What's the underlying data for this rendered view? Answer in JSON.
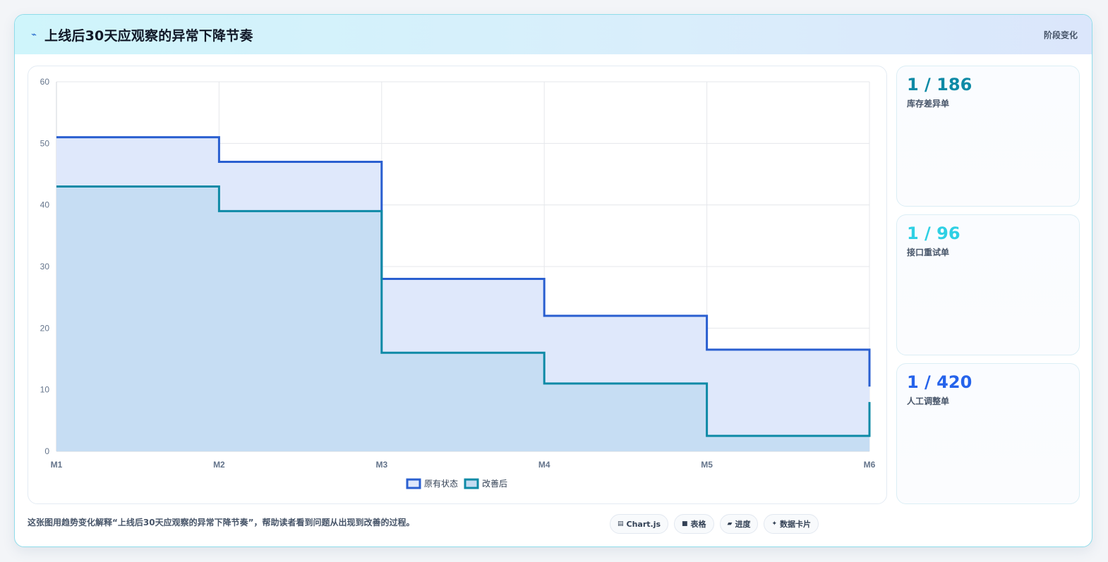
{
  "header": {
    "icon": "lightning-icon",
    "title": "上线后30天应观察的异常下降节奏",
    "tag": "阶段变化"
  },
  "colors": {
    "series_original": "#2a5fd0",
    "series_original_fill": "#dfe8fb",
    "series_improved": "#0e8aa6",
    "series_improved_fill": "#c4dcf2",
    "stat1": "#0e8aa6",
    "stat2": "#2ed0e4",
    "stat3": "#2563eb"
  },
  "chart_data": {
    "type": "line",
    "stepped": true,
    "categories": [
      "M1",
      "M2",
      "M3",
      "M4",
      "M5",
      "M6"
    ],
    "series": [
      {
        "name": "原有状态",
        "values": [
          51,
          47,
          28,
          22,
          16.5,
          10.5
        ]
      },
      {
        "name": "改善后",
        "values": [
          43,
          39,
          16,
          11,
          2.5,
          8
        ]
      }
    ],
    "yticks": [
      0,
      10,
      20,
      30,
      40,
      50,
      60
    ],
    "ylim": [
      0,
      60
    ],
    "grid": true,
    "legend": "bottom"
  },
  "stats": [
    {
      "value": "1 / 186",
      "label": "库存差异单"
    },
    {
      "value": "1 / 96",
      "label": "接口重试单"
    },
    {
      "value": "1 / 420",
      "label": "人工调整单"
    }
  ],
  "footer": {
    "text": "这张图用趋势变化解释“上线后30天应观察的异常下降节奏”，帮助读者看到问题从出现到改善的过程。",
    "chips": [
      {
        "icon": "chart-icon",
        "glyph": "▤",
        "label": "Chart.js"
      },
      {
        "icon": "table-icon",
        "glyph": "■",
        "label": "表格"
      },
      {
        "icon": "progress-icon",
        "glyph": "▰",
        "label": "进度"
      },
      {
        "icon": "sparkle-icon",
        "glyph": "✦",
        "label": "数据卡片"
      }
    ]
  }
}
